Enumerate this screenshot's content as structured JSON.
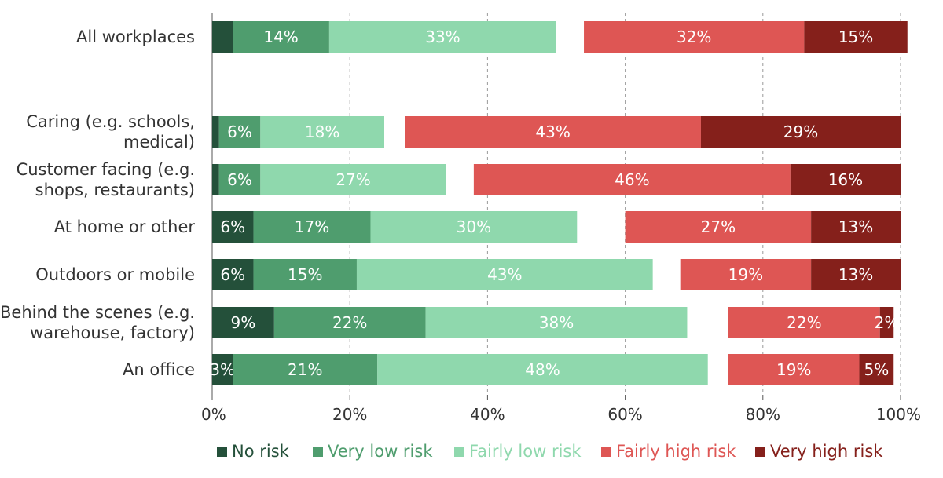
{
  "chart_data": {
    "type": "bar",
    "orientation": "horizontal",
    "stacked": true,
    "categories": [
      "All workplaces",
      "Caring (e.g. schools, medical)",
      "Customer facing (e.g. shops, restaurants)",
      "At home or other",
      "Outdoors or mobile",
      "Behind the scenes (e.g. warehouse, factory)",
      "An office"
    ],
    "category_lines": [
      [
        "All workplaces"
      ],
      [
        "Caring (e.g. schools,",
        "medical)"
      ],
      [
        "Customer facing (e.g.",
        "shops, restaurants)"
      ],
      [
        "At home or other"
      ],
      [
        "Outdoors or mobile"
      ],
      [
        "Behind the scenes (e.g.",
        "warehouse, factory)"
      ],
      [
        "An office"
      ]
    ],
    "series": [
      {
        "name": "No risk",
        "color": "#24503a",
        "values": [
          3,
          1,
          1,
          6,
          6,
          9,
          3
        ]
      },
      {
        "name": "Very low risk",
        "color": "#4f9d6e",
        "values": [
          14,
          6,
          6,
          17,
          15,
          22,
          21
        ]
      },
      {
        "name": "Fairly low risk",
        "color": "#8fd8ad",
        "values": [
          33,
          18,
          27,
          30,
          43,
          38,
          48
        ]
      },
      {
        "name": "Unlabeled gap",
        "color": "#ffffff",
        "values": [
          4,
          3,
          4,
          7,
          4,
          6,
          3
        ]
      },
      {
        "name": "Fairly high risk",
        "color": "#de5654",
        "values": [
          32,
          43,
          46,
          27,
          19,
          22,
          19
        ]
      },
      {
        "name": "Very high risk",
        "color": "#85201b",
        "values": [
          15,
          29,
          16,
          13,
          13,
          2,
          5
        ]
      }
    ],
    "data_labels": [
      [
        "",
        "14%",
        "33%",
        "",
        "32%",
        "15%"
      ],
      [
        "",
        "6%",
        "18%",
        "",
        "43%",
        "29%"
      ],
      [
        "",
        "6%",
        "27%",
        "",
        "46%",
        "16%"
      ],
      [
        "6%",
        "17%",
        "30%",
        "",
        "27%",
        "13%"
      ],
      [
        "6%",
        "15%",
        "43%",
        "",
        "19%",
        "13%"
      ],
      [
        "9%",
        "22%",
        "38%",
        "",
        "22%",
        "2%"
      ],
      [
        "3%",
        "21%",
        "48%",
        "",
        "19%",
        "5%"
      ]
    ],
    "xlim": [
      0,
      100
    ],
    "xticks": [
      "0%",
      "20%",
      "40%",
      "60%",
      "80%",
      "100%"
    ],
    "grid": true,
    "legend": {
      "placement": "bottom",
      "entries": [
        "No risk",
        "Very low risk",
        "Fairly low risk",
        "Fairly high risk",
        "Very high risk"
      ]
    }
  }
}
